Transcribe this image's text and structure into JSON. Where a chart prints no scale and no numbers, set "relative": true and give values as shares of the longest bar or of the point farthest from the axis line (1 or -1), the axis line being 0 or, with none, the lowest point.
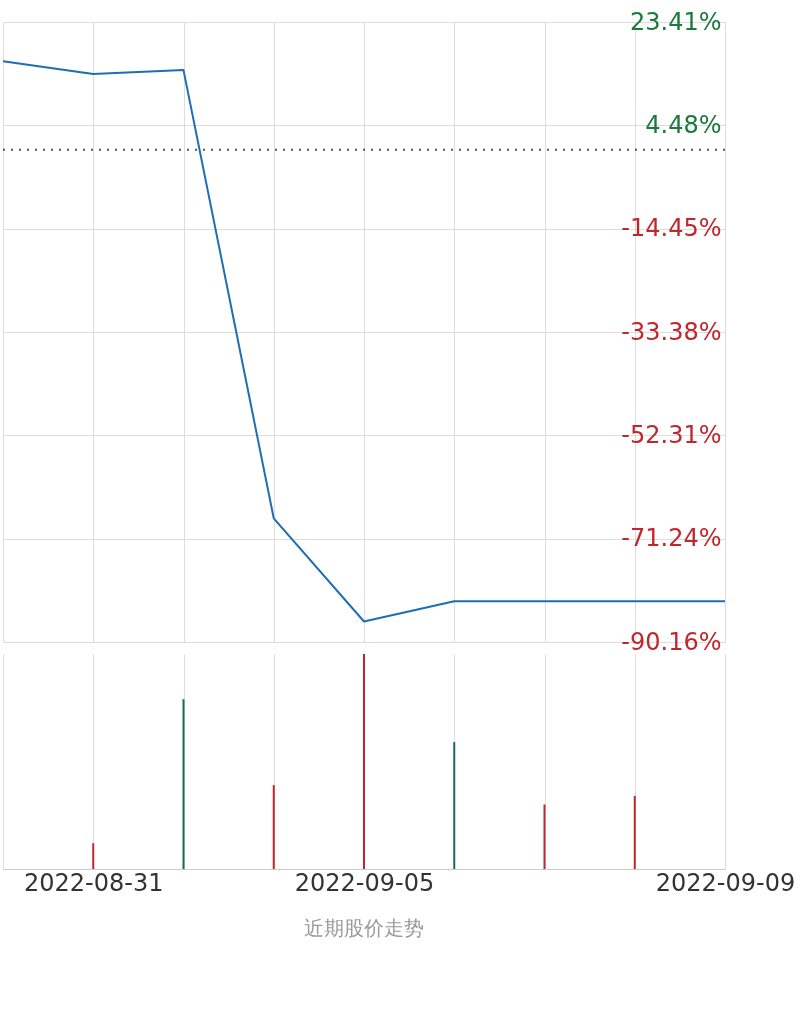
{
  "chart_data": [
    {
      "type": "line",
      "categories": [
        null,
        "2022-08-31",
        null,
        null,
        "2022-09-05",
        null,
        null,
        null,
        "2022-09-09"
      ],
      "series": [
        {
          "color": "#1f6db3",
          "values": [
            16.2,
            13.9,
            14.6,
            -67.5,
            -86.4,
            -82.7,
            -82.7,
            -82.7,
            -82.7
          ]
        }
      ],
      "ylim": [
        -90.16,
        23.41
      ],
      "yticks": [
        {
          "value": 23.41,
          "label": "23.41%"
        },
        {
          "value": 4.48,
          "label": "4.48%"
        },
        {
          "value": -14.45,
          "label": "-14.45%"
        },
        {
          "value": -33.38,
          "label": "-33.38%"
        },
        {
          "value": -52.31,
          "label": "-52.31%"
        },
        {
          "value": -71.24,
          "label": "-71.24%"
        },
        {
          "value": -90.16,
          "label": "-90.16%"
        }
      ],
      "ref_lines": [
        {
          "axis": "y",
          "value": 0,
          "color": "#555555",
          "line_style": "dotted"
        }
      ],
      "grid": true,
      "tick_labels": "y"
    },
    {
      "type": "bar",
      "categories": [
        null,
        "2022-08-31",
        null,
        null,
        "2022-09-05",
        null,
        null,
        null,
        "2022-09-09"
      ],
      "values": [
        null,
        0.12,
        0.79,
        0.39,
        1,
        0.59,
        0.3,
        0.34,
        null
      ],
      "colors": [
        "#c0272d",
        "#c0272d",
        "#1a6b5a",
        "#c0272d",
        "#c0272d",
        "#1a6b5a",
        "#c0272d",
        "#c0272d",
        "#c0272d"
      ],
      "relative": true,
      "grid": "x",
      "annotations": [
        "近期股价走势"
      ]
    }
  ]
}
